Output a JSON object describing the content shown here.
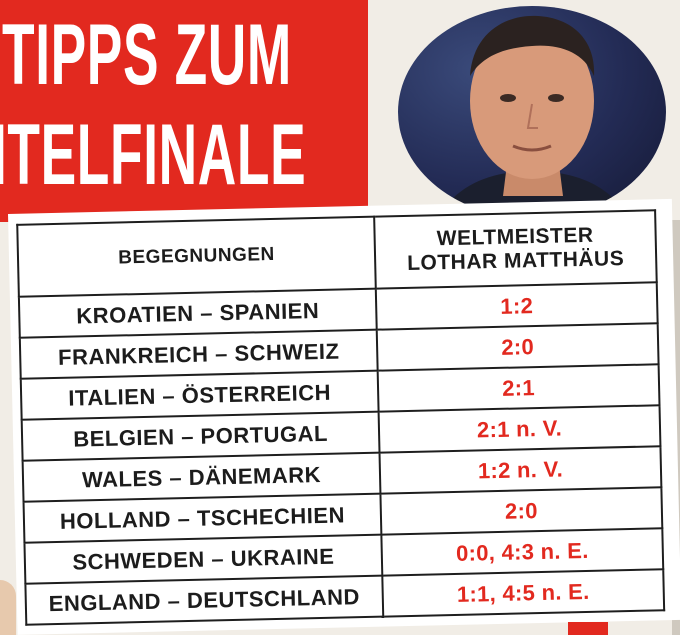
{
  "headline": {
    "line1": "TIPPS ZUM",
    "line2": "ITELFINALE"
  },
  "table": {
    "header_left": "BEGEGNUNGEN",
    "header_right_1": "WELTMEISTER",
    "header_right_2": "LOTHAR MATTHÄUS",
    "rows": [
      {
        "match": "KROATIEN – SPANIEN",
        "tip": "1:2"
      },
      {
        "match": "FRANKREICH – SCHWEIZ",
        "tip": "2:0"
      },
      {
        "match": "ITALIEN – ÖSTERREICH",
        "tip": "2:1"
      },
      {
        "match": "BELGIEN – PORTUGAL",
        "tip": "2:1 n. V."
      },
      {
        "match": "WALES – DÄNEMARK",
        "tip": "1:2 n. V."
      },
      {
        "match": "HOLLAND – TSCHECHIEN",
        "tip": "2:0"
      },
      {
        "match": "SCHWEDEN – UKRAINE",
        "tip": "0:0, 4:3 n. E."
      },
      {
        "match": "ENGLAND – DEUTSCHLAND",
        "tip": "1:1, 4:5 n. E."
      }
    ]
  },
  "colors": {
    "accent_red": "#e2291f",
    "text_dark": "#1c1c1c"
  }
}
